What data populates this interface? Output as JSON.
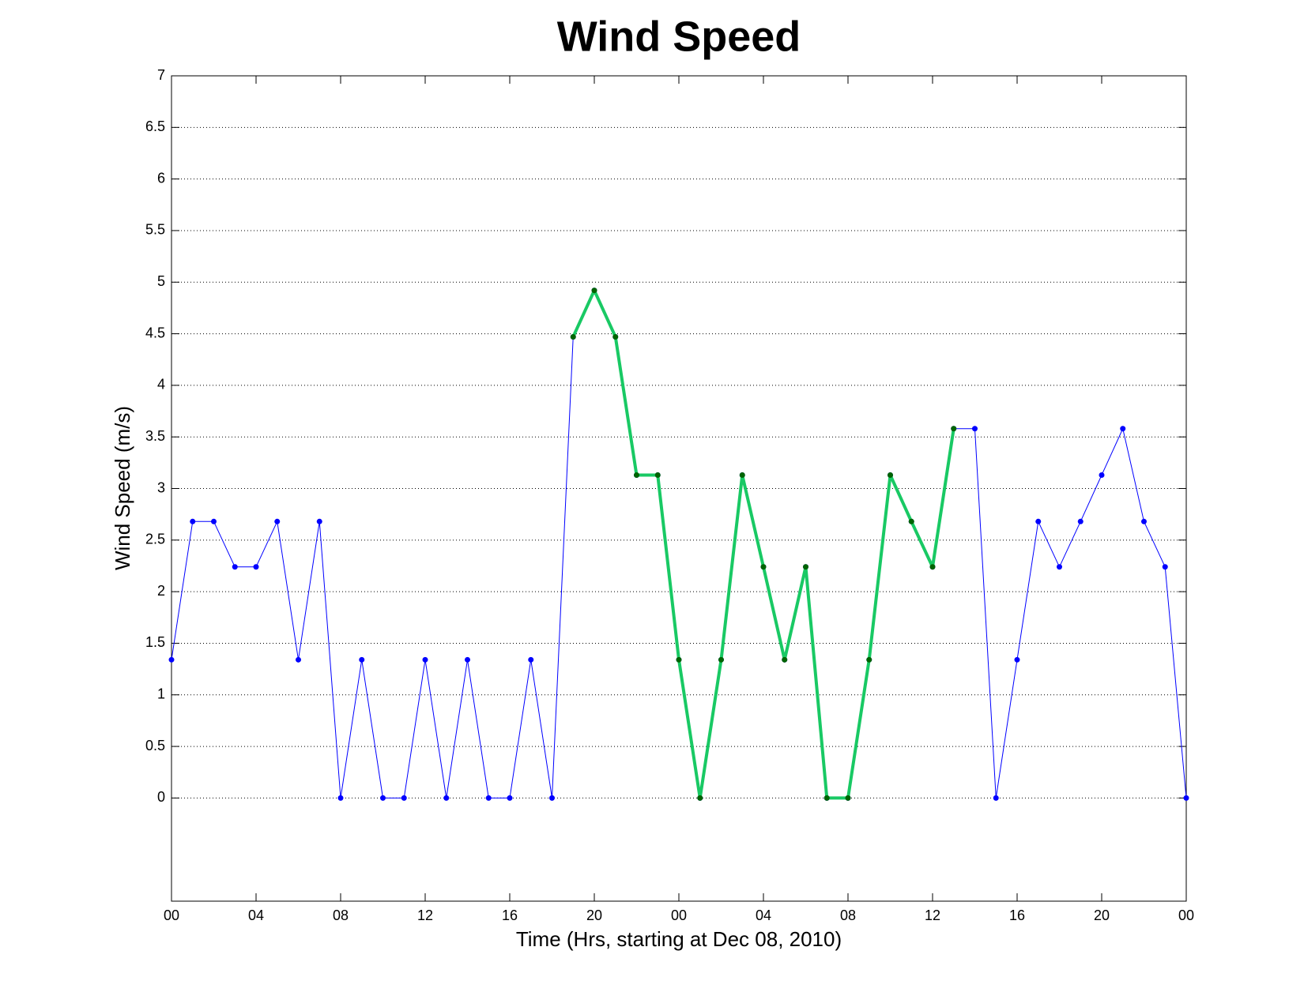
{
  "chart_data": {
    "type": "line",
    "title": "Wind Speed",
    "xlabel": "Time (Hrs, starting at Dec 08, 2010)",
    "ylabel": "Wind Speed (m/s)",
    "x": [
      0,
      1,
      2,
      3,
      4,
      5,
      6,
      7,
      8,
      9,
      10,
      11,
      12,
      13,
      14,
      15,
      16,
      17,
      18,
      19,
      20,
      21,
      22,
      23,
      24,
      25,
      26,
      27,
      28,
      29,
      30,
      31,
      32,
      33,
      34,
      35,
      36,
      37,
      38,
      39,
      40,
      41,
      42,
      43,
      44,
      45,
      46,
      47,
      48
    ],
    "series": [
      {
        "color": "#0000ff",
        "marker_color": "#0000ff",
        "width": 1,
        "values": [
          1.34,
          2.68,
          2.68,
          2.24,
          2.24,
          2.68,
          1.34,
          2.68,
          0,
          1.34,
          0,
          0,
          1.34,
          0,
          1.34,
          0,
          0,
          1.34,
          0,
          4.47,
          4.92,
          4.47,
          3.13,
          3.13,
          1.34,
          0,
          1.34,
          3.13,
          2.24,
          1.34,
          2.24,
          0,
          0,
          1.34,
          3.13,
          2.68,
          2.24,
          3.58,
          3.58,
          0,
          1.34,
          2.68,
          2.24,
          2.68,
          3.13,
          3.58,
          2.68,
          2.24,
          0
        ]
      },
      {
        "color": "#19c964",
        "marker_color": "#006400",
        "width": 4,
        "values": [
          null,
          null,
          null,
          null,
          null,
          null,
          null,
          null,
          null,
          null,
          null,
          null,
          null,
          null,
          null,
          null,
          null,
          null,
          null,
          4.47,
          4.92,
          4.47,
          3.13,
          3.13,
          1.34,
          0,
          1.34,
          3.13,
          2.24,
          1.34,
          2.24,
          0,
          0,
          1.34,
          3.13,
          2.68,
          2.24,
          3.58,
          null,
          null,
          null,
          null,
          null,
          null,
          null,
          null,
          null,
          null,
          null
        ]
      }
    ],
    "xlim": [
      0,
      48
    ],
    "xticks": [
      {
        "value": 0,
        "label": "00"
      },
      {
        "value": 4,
        "label": "04"
      },
      {
        "value": 8,
        "label": "08"
      },
      {
        "value": 12,
        "label": "12"
      },
      {
        "value": 16,
        "label": "16"
      },
      {
        "value": 20,
        "label": "20"
      },
      {
        "value": 24,
        "label": "00"
      },
      {
        "value": 28,
        "label": "04"
      },
      {
        "value": 32,
        "label": "08"
      },
      {
        "value": 36,
        "label": "12"
      },
      {
        "value": 40,
        "label": "16"
      },
      {
        "value": 44,
        "label": "20"
      },
      {
        "value": 48,
        "label": "00"
      }
    ],
    "ylim": [
      -1,
      7
    ],
    "yticks": [
      0,
      0.5,
      1,
      1.5,
      2,
      2.5,
      3,
      3.5,
      4,
      4.5,
      5,
      5.5,
      6,
      6.5,
      7
    ],
    "grid": "y"
  }
}
